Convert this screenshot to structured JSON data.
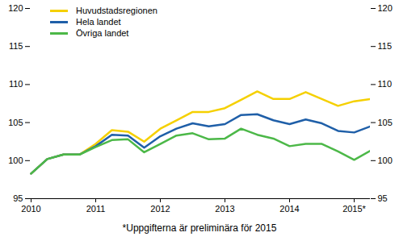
{
  "chart_data": {
    "type": "line",
    "categories": [
      "2010",
      null,
      null,
      null,
      "2011",
      null,
      null,
      null,
      "2012",
      null,
      null,
      null,
      "2013",
      null,
      null,
      null,
      "2014",
      null,
      null,
      null,
      "2015*",
      null
    ],
    "series": [
      {
        "name": "Huvudstadsregionen",
        "color": "#f5d000",
        "values": [
          98.3,
          100.2,
          100.8,
          100.8,
          102.2,
          104.0,
          103.8,
          102.5,
          104.2,
          105.3,
          106.4,
          106.4,
          106.9,
          108.0,
          109.1,
          108.1,
          108.1,
          109.0,
          108.1,
          107.2,
          107.8,
          108.1
        ]
      },
      {
        "name": "Hela landet",
        "color": "#1f5fa8",
        "values": [
          98.3,
          100.2,
          100.8,
          100.8,
          101.9,
          103.4,
          103.3,
          101.7,
          103.2,
          104.2,
          104.9,
          104.5,
          104.8,
          106.0,
          106.1,
          105.3,
          104.8,
          105.4,
          104.9,
          103.9,
          103.7,
          104.5
        ]
      },
      {
        "name": "Övriga landet",
        "color": "#4cb848",
        "values": [
          98.3,
          100.2,
          100.8,
          100.8,
          101.8,
          102.7,
          102.8,
          101.1,
          102.2,
          103.3,
          103.6,
          102.8,
          102.9,
          104.2,
          103.4,
          102.9,
          101.9,
          102.2,
          102.2,
          101.2,
          100.1,
          101.3
        ]
      }
    ],
    "ylim": [
      95,
      120
    ],
    "yticks": [
      95,
      100,
      105,
      110,
      115,
      120
    ],
    "grid": false,
    "legend": "top-left",
    "annotations": [
      "*Uppgifterna är preliminära för 2015"
    ]
  }
}
